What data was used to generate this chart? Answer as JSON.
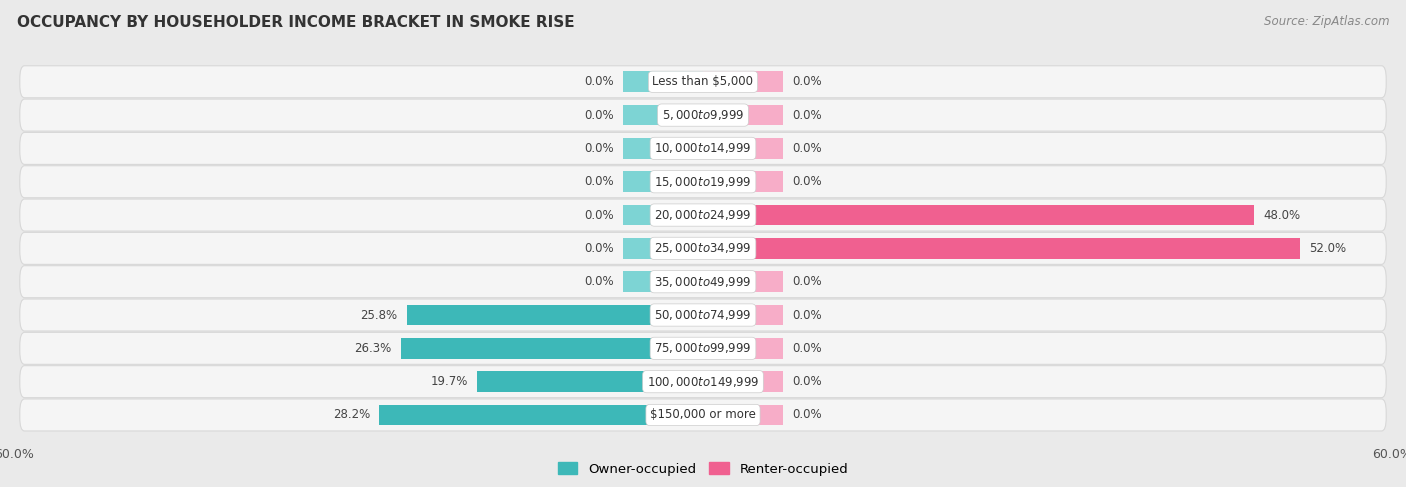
{
  "title": "OCCUPANCY BY HOUSEHOLDER INCOME BRACKET IN SMOKE RISE",
  "source": "Source: ZipAtlas.com",
  "categories": [
    "Less than $5,000",
    "$5,000 to $9,999",
    "$10,000 to $14,999",
    "$15,000 to $19,999",
    "$20,000 to $24,999",
    "$25,000 to $34,999",
    "$35,000 to $49,999",
    "$50,000 to $74,999",
    "$75,000 to $99,999",
    "$100,000 to $149,999",
    "$150,000 or more"
  ],
  "owner_values": [
    0.0,
    0.0,
    0.0,
    0.0,
    0.0,
    0.0,
    0.0,
    25.8,
    26.3,
    19.7,
    28.2
  ],
  "renter_values": [
    0.0,
    0.0,
    0.0,
    0.0,
    48.0,
    52.0,
    0.0,
    0.0,
    0.0,
    0.0,
    0.0
  ],
  "owner_color": "#3db8b8",
  "renter_color": "#f06090",
  "renter_color_light": "#f7adc8",
  "owner_color_light": "#7dd4d4",
  "axis_limit": 60.0,
  "bg_color": "#eaeaea",
  "row_bg_color": "#f5f5f5",
  "row_border_color": "#d8d8d8",
  "label_color": "#444444",
  "title_color": "#333333",
  "bar_height": 0.62,
  "stub_size": 7.0,
  "figsize": [
    14.06,
    4.87
  ],
  "dpi": 100
}
